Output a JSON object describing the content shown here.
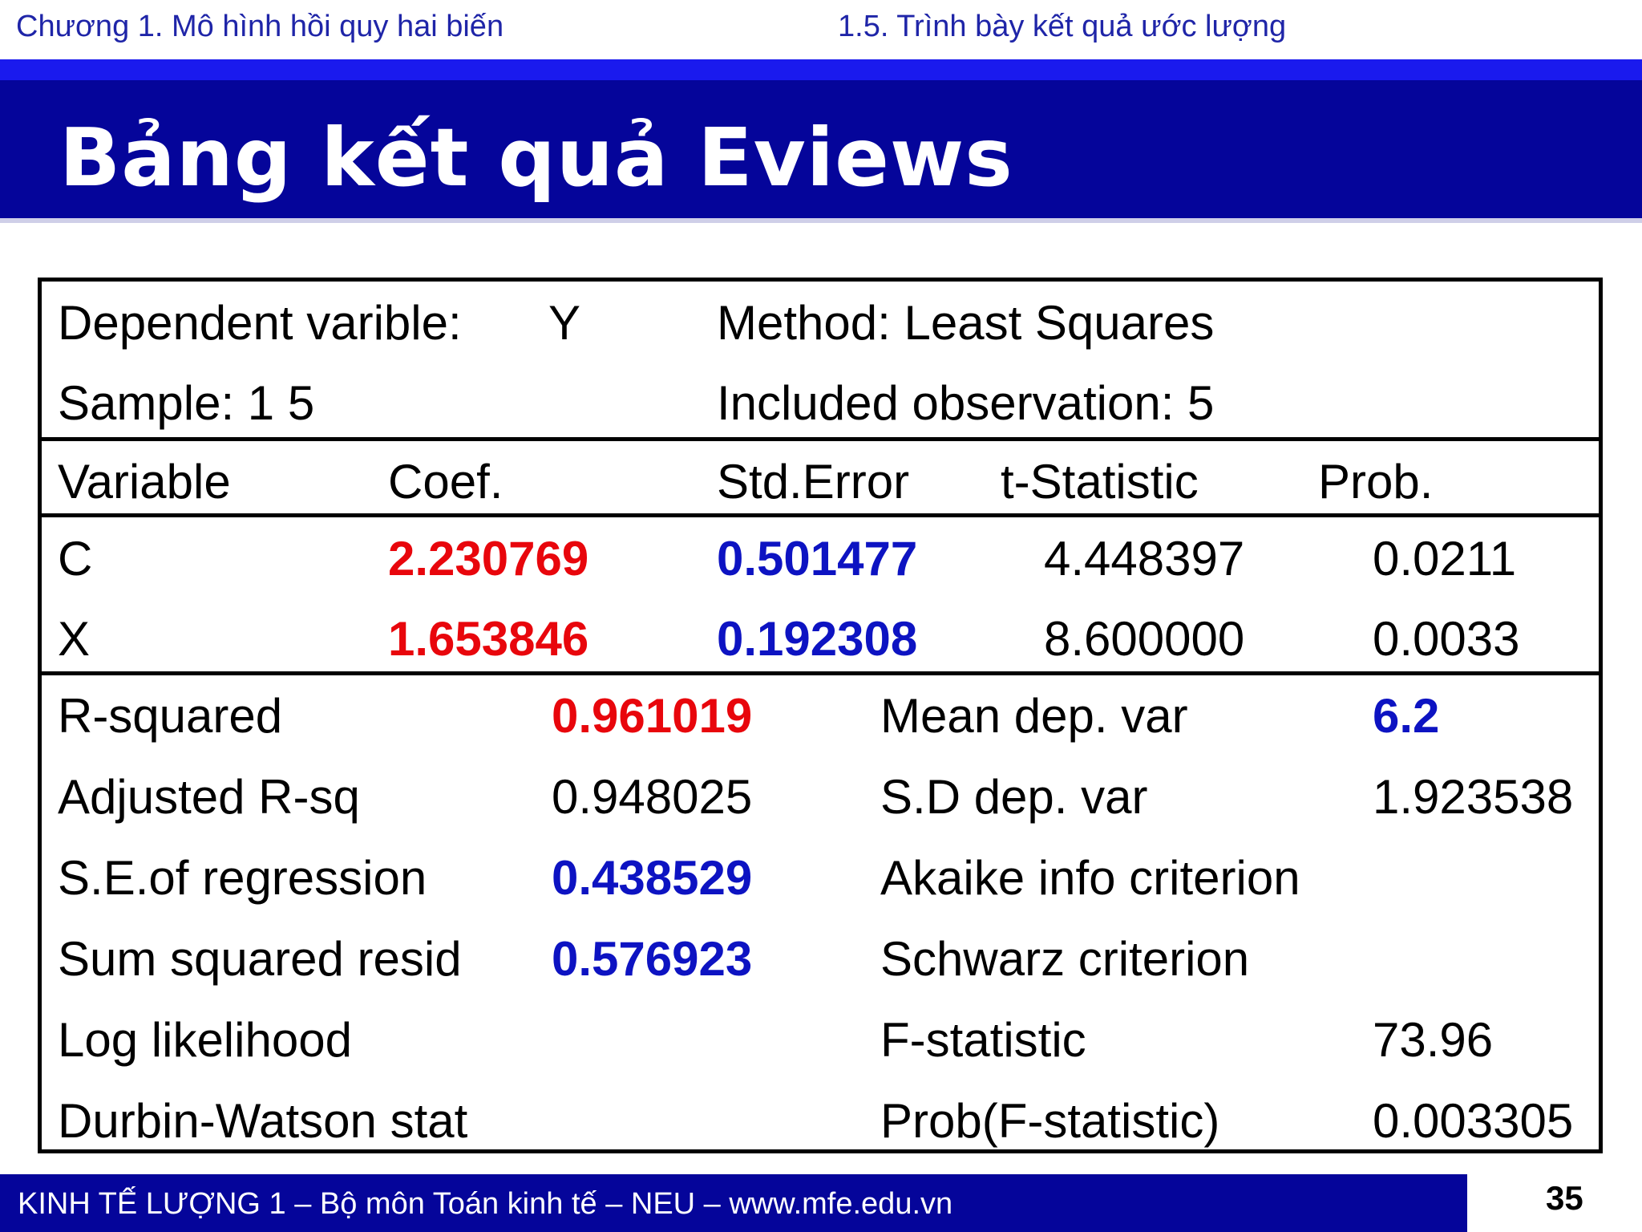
{
  "header": {
    "chapter": "Chương 1. Mô hình hồi quy hai biến",
    "section": "1.5. Trình bày kết quả ước lượng"
  },
  "title": "Bảng kết quả Eviews",
  "table": {
    "info": {
      "dep_label": "Dependent varible:",
      "dep_value": "Y",
      "method": "Method: Least Squares",
      "sample": "Sample: 1  5",
      "observations": "Included observation: 5"
    },
    "columns": [
      "Variable",
      "Coef.",
      "Std.Error",
      "t-Statistic",
      "Prob."
    ],
    "rows": [
      {
        "variable": "C",
        "coef": "2.230769",
        "std_error": "0.501477",
        "t_stat": "4.448397",
        "prob": "0.0211"
      },
      {
        "variable": "X",
        "coef": "1.653846",
        "std_error": "0.192308",
        "t_stat": "8.600000",
        "prob": "0.0033"
      }
    ],
    "stats_left": [
      {
        "label": "R-squared",
        "value": "0.961019",
        "color": "#e8060c"
      },
      {
        "label": "Adjusted R-sq",
        "value": "0.948025",
        "color": "#000000"
      },
      {
        "label": "S.E.of regression",
        "value": "0.438529",
        "color": "#0d13c2"
      },
      {
        "label": "Sum squared resid",
        "value": "0.576923",
        "color": "#0d13c2"
      },
      {
        "label": "Log likelihood",
        "value": ""
      },
      {
        "label": "Durbin-Watson stat",
        "value": ""
      }
    ],
    "stats_right": [
      {
        "label": "Mean dep. var",
        "value": "6.2",
        "color": "#0d13c2"
      },
      {
        "label": "S.D dep. var",
        "value": "1.923538",
        "color": "#000000"
      },
      {
        "label": "Akaike info criterion",
        "value": ""
      },
      {
        "label": "Schwarz criterion",
        "value": ""
      },
      {
        "label": "F-statistic",
        "value": "73.96",
        "color": "#000000"
      },
      {
        "label": "Prob(F-statistic)",
        "value": "0.003305",
        "color": "#000000"
      }
    ]
  },
  "footer": {
    "text": "KINH TẾ LƯỢNG 1 –  Bộ môn Toán kinh tế –  NEU – www.mfe.edu.vn",
    "page_number": "35"
  },
  "colors": {
    "title_band": "#05059a",
    "accent_stripe": "#1a1aee",
    "header_text": "#1f25a8",
    "highlight_red": "#e8060c",
    "highlight_blue": "#0d13c2"
  }
}
